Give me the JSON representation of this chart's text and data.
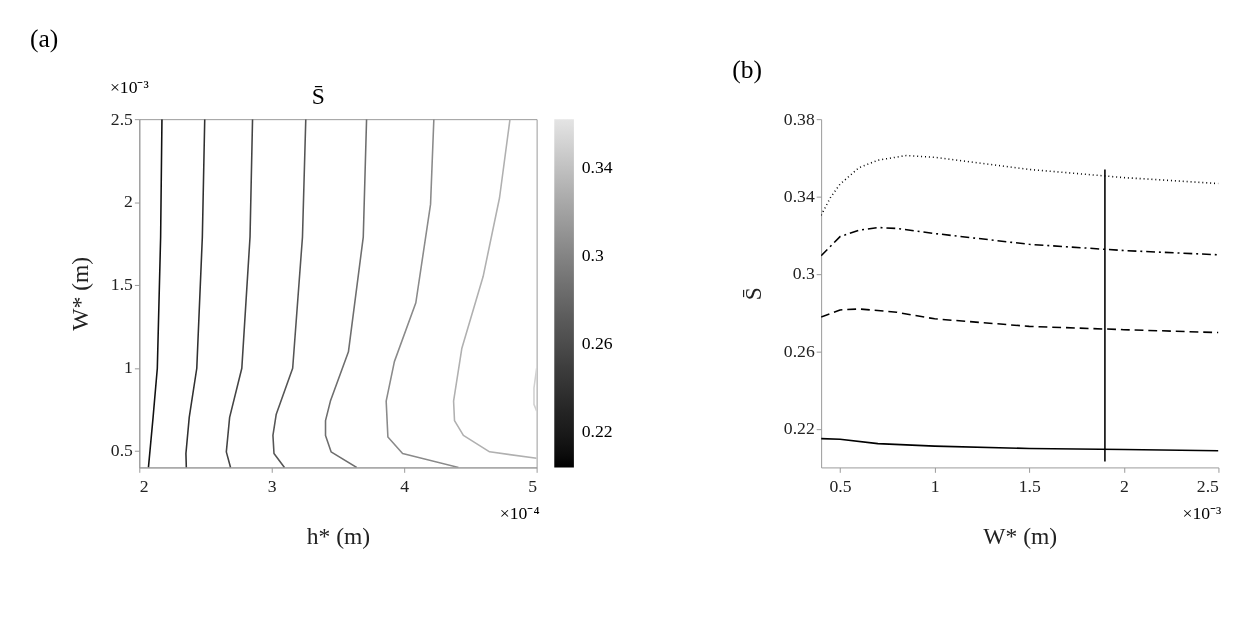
{
  "chart_data": [
    {
      "type": "line",
      "title": "(a)",
      "clabel": "S̄",
      "xlabel": "h* (m)",
      "ylabel": "W* (m)",
      "xlim": [
        2,
        5
      ],
      "xticks": [
        2,
        3,
        4,
        5
      ],
      "ylim": [
        0.4,
        2.5
      ],
      "yticks": [
        0.5,
        1,
        1.5,
        2,
        2.5
      ],
      "clim": [
        0.204,
        0.362
      ],
      "cticks": [
        0.22,
        0.26,
        0.3,
        0.34
      ],
      "grid": false,
      "annotations": [
        "×10⁻³",
        "×10⁻⁴"
      ],
      "series": [
        {
          "color": "#111111",
          "x": [
            2.171,
            2.161,
            2.136,
            2.104,
            2.069
          ],
          "values": [
            2.5,
            1.789,
            0.998,
            0.702,
            0.4
          ]
        },
        {
          "color": "#303030",
          "x": [
            2.494,
            2.476,
            2.434,
            2.377,
            2.352,
            2.355
          ],
          "values": [
            2.5,
            1.789,
            0.998,
            0.702,
            0.484,
            0.4
          ]
        },
        {
          "color": "#444444",
          "x": [
            2.855,
            2.836,
            2.774,
            2.682,
            2.657,
            2.689
          ],
          "values": [
            2.5,
            1.789,
            0.998,
            0.702,
            0.494,
            0.4
          ]
        },
        {
          "color": "#555555",
          "x": [
            3.257,
            3.232,
            3.158,
            3.034,
            3.009,
            3.017,
            3.096
          ],
          "values": [
            2.5,
            1.789,
            0.998,
            0.721,
            0.593,
            0.484,
            0.4
          ]
        },
        {
          "color": "#6e6e6e",
          "x": [
            3.716,
            3.691,
            3.579,
            3.443,
            3.406,
            3.406,
            3.448,
            3.641
          ],
          "values": [
            2.5,
            1.789,
            1.097,
            0.8,
            0.682,
            0.593,
            0.494,
            0.4
          ]
        },
        {
          "color": "#8a8a8a",
          "x": [
            4.224,
            4.199,
            4.088,
            3.926,
            3.864,
            3.877,
            3.988,
            4.41
          ],
          "values": [
            2.5,
            1.986,
            1.393,
            1.038,
            0.8,
            0.583,
            0.484,
            0.4
          ]
        },
        {
          "color": "#b0b0b0",
          "x": [
            4.799,
            4.72,
            4.596,
            4.435,
            4.373,
            4.38,
            4.447,
            4.645,
            5.0
          ],
          "values": [
            2.5,
            2.026,
            1.551,
            1.117,
            0.8,
            0.682,
            0.593,
            0.494,
            0.455
          ]
        },
        {
          "color": "#d0d0d0",
          "x": [
            5.0,
            4.98,
            4.98,
            5.0
          ],
          "values": [
            0.998,
            0.879,
            0.78,
            0.741
          ]
        }
      ]
    },
    {
      "type": "line",
      "title": "(b)",
      "xlabel": "W* (m)",
      "ylabel": "S̄",
      "xlim": [
        0.4,
        2.5
      ],
      "xticks": [
        0.5,
        1,
        1.5,
        2,
        2.5
      ],
      "ylim": [
        0.2,
        0.38
      ],
      "yticks": [
        0.22,
        0.26,
        0.3,
        0.34,
        0.38
      ],
      "grid": false,
      "annotations": [
        "×10⁻³"
      ],
      "series": [
        {
          "color": "#000000",
          "line_style": "solid",
          "x": [
            0.4,
            0.5,
            0.7,
            1.0,
            1.5,
            2.0,
            2.5
          ],
          "values": [
            0.2149,
            0.2146,
            0.2123,
            0.211,
            0.2098,
            0.2093,
            0.2086
          ]
        },
        {
          "color": "#000000",
          "line_style": "dashed",
          "x": [
            0.4,
            0.5,
            0.6,
            0.8,
            1.0,
            1.5,
            2.0,
            2.5
          ],
          "values": [
            0.2777,
            0.2814,
            0.2819,
            0.2802,
            0.2768,
            0.2729,
            0.2712,
            0.2697
          ]
        },
        {
          "color": "#000000",
          "line_style": "dashdot",
          "x": [
            0.4,
            0.5,
            0.6,
            0.7,
            0.8,
            1.0,
            1.5,
            2.0,
            2.5
          ],
          "values": [
            0.3094,
            0.3193,
            0.3226,
            0.324,
            0.3235,
            0.3209,
            0.3153,
            0.3121,
            0.3099
          ]
        },
        {
          "color": "#000000",
          "line_style": "dotted",
          "x": [
            0.4,
            0.45,
            0.5,
            0.6,
            0.7,
            0.85,
            1.0,
            1.5,
            2.0,
            2.5
          ],
          "values": [
            0.3303,
            0.3396,
            0.3464,
            0.3549,
            0.3588,
            0.3612,
            0.3603,
            0.354,
            0.3498,
            0.3467
          ]
        },
        {
          "color": "#000000",
          "line_style": "solid",
          "x": [
            1.9,
            1.9
          ],
          "values": [
            0.203,
            0.354
          ]
        }
      ]
    }
  ]
}
